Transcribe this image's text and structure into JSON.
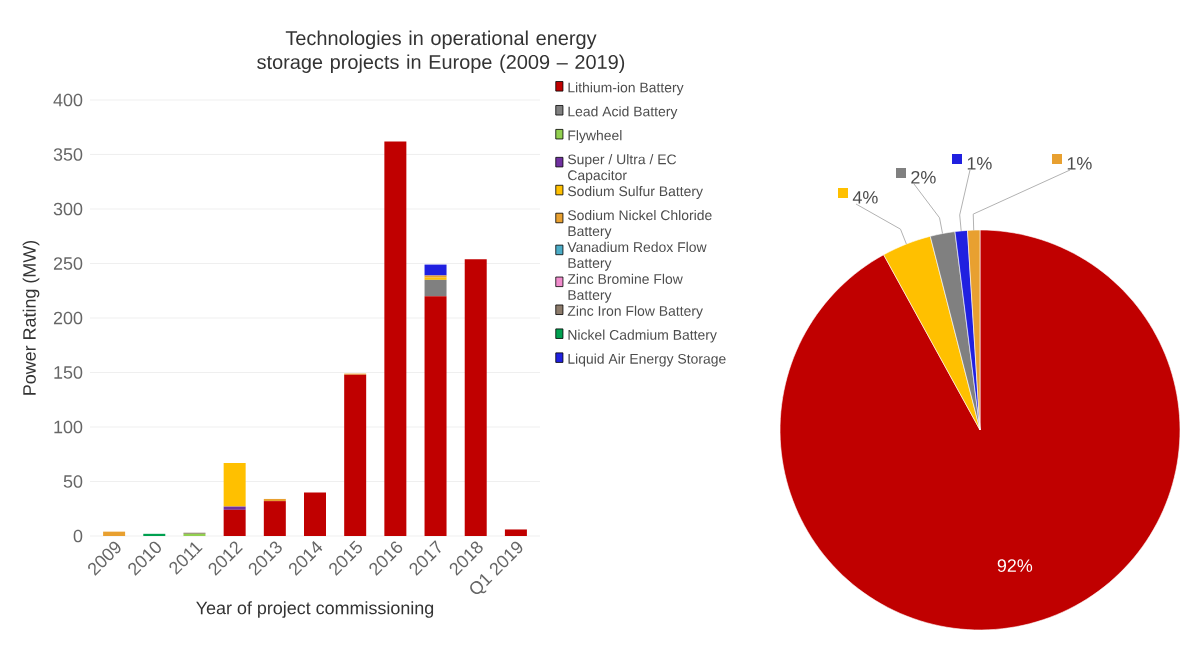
{
  "chart_data": [
    {
      "type": "bar",
      "title": "Technologies in operational energy storage projects in Europe (2009 – 2019)",
      "xlabel": "Year of project commissioning",
      "ylabel": "Power Rating (MW)",
      "categories": [
        "2009",
        "2010",
        "2011",
        "2012",
        "2013",
        "2014",
        "2015",
        "2016",
        "2017",
        "2018",
        "Q1 2019"
      ],
      "stacked": true,
      "ylim": [
        0,
        400
      ],
      "yticks": [
        0,
        50,
        100,
        150,
        200,
        250,
        300,
        350,
        400
      ],
      "grid": "y",
      "legend": "right",
      "series": [
        {
          "name": "Lithium-ion Battery",
          "color": "#c00000",
          "values": [
            0,
            0,
            0,
            24,
            32,
            40,
            148,
            362,
            220,
            254,
            6
          ]
        },
        {
          "name": "Lead Acid Battery",
          "color": "#808080",
          "values": [
            0,
            0,
            0,
            0,
            0,
            0,
            0,
            0,
            15,
            0,
            0
          ]
        },
        {
          "name": "Flywheel",
          "color": "#92d050",
          "values": [
            0,
            0,
            2,
            0,
            0,
            0,
            0,
            0,
            0,
            0,
            0
          ]
        },
        {
          "name": "Super / Ultra / EC Capacitor",
          "color": "#7030a0",
          "values": [
            0,
            0,
            0,
            3,
            0,
            0,
            0,
            0,
            0,
            0,
            0
          ]
        },
        {
          "name": "Sodium Sulfur Battery",
          "color": "#ffc000",
          "values": [
            0,
            0,
            0,
            40,
            0,
            0,
            0,
            0,
            2,
            0,
            0
          ]
        },
        {
          "name": "Sodium Nickel Chloride Battery",
          "color": "#e8a030",
          "values": [
            4,
            0,
            0,
            0,
            2,
            0,
            1,
            0,
            2,
            0,
            0
          ]
        },
        {
          "name": "Vanadium Redox Flow Battery",
          "color": "#4bacc6",
          "values": [
            0,
            0,
            0,
            0,
            0,
            0,
            0,
            0,
            0,
            0,
            0
          ]
        },
        {
          "name": "Zinc Bromine Flow Battery",
          "color": "#f08ccc",
          "values": [
            0,
            0,
            0,
            0,
            0,
            0,
            0,
            0,
            0,
            0,
            0
          ]
        },
        {
          "name": "Zinc Iron Flow Battery",
          "color": "#8c7b6b",
          "values": [
            0,
            0,
            1,
            0,
            0,
            0,
            0,
            0,
            0,
            0,
            0
          ]
        },
        {
          "name": "Nickel Cadmium Battery",
          "color": "#00a050",
          "values": [
            0,
            2,
            0,
            0,
            0,
            0,
            0,
            0,
            0,
            0,
            0
          ]
        },
        {
          "name": "Liquid Air Energy Storage",
          "color": "#2020e0",
          "values": [
            0,
            0,
            0,
            0,
            0,
            0,
            0,
            0,
            10,
            0,
            0
          ]
        }
      ]
    },
    {
      "type": "pie",
      "categories": [
        null,
        null,
        null,
        null,
        null
      ],
      "values": [
        92,
        4,
        2,
        1,
        1
      ],
      "colors": [
        "#c00000",
        "#ffc000",
        "#808080",
        "#2020e0",
        "#e8a030"
      ],
      "value_labels": [
        "92%",
        "4%",
        "2%",
        "1%",
        "1%"
      ]
    }
  ]
}
